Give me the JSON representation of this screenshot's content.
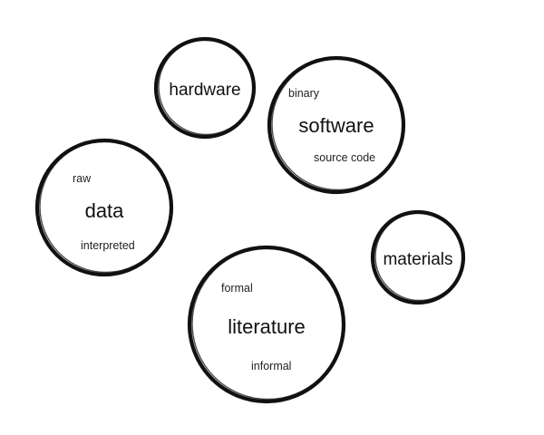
{
  "circles": {
    "hardware": {
      "label": "hardware"
    },
    "software": {
      "label": "software",
      "sub_top": "binary",
      "sub_bottom": "source code"
    },
    "data": {
      "label": "data",
      "sub_top": "raw",
      "sub_bottom": "interpreted"
    },
    "materials": {
      "label": "materials"
    },
    "literature": {
      "label": "literature",
      "sub_top": "formal",
      "sub_bottom": "informal"
    }
  }
}
